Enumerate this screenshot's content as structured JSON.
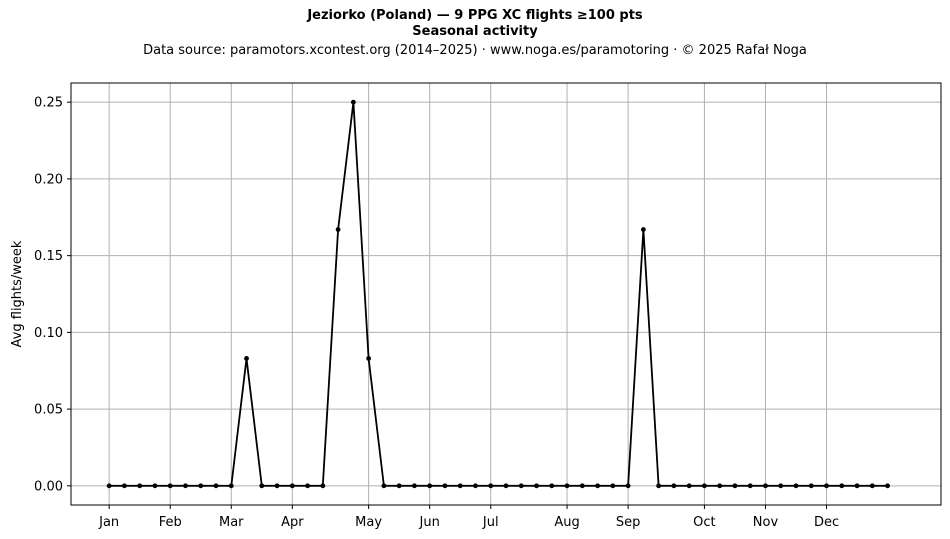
{
  "chart_data": {
    "type": "line",
    "title": "Jeziorko (Poland)  —  9 PPG XC flights ≥100 pts",
    "subtitle": "Seasonal activity",
    "source_note": "Data source: paramotors.xcontest.org (2014–2025)  ·  www.noga.es/paramotoring  ·  © 2025 Rafał Noga",
    "xlabel": "",
    "ylabel": "Avg flights/week",
    "x_axis": "week of year",
    "xlim": [
      -2.5,
      54.5
    ],
    "ylim": [
      -0.0125,
      0.2625
    ],
    "grid": true,
    "month_ticks": [
      {
        "label": "Jan",
        "x": 0
      },
      {
        "label": "Feb",
        "x": 4
      },
      {
        "label": "Mar",
        "x": 8
      },
      {
        "label": "Apr",
        "x": 12
      },
      {
        "label": "May",
        "x": 17
      },
      {
        "label": "Jun",
        "x": 21
      },
      {
        "label": "Jul",
        "x": 25
      },
      {
        "label": "Aug",
        "x": 30
      },
      {
        "label": "Sep",
        "x": 34
      },
      {
        "label": "Oct",
        "x": 39
      },
      {
        "label": "Nov",
        "x": 43
      },
      {
        "label": "Dec",
        "x": 47
      }
    ],
    "y_ticks": [
      "0.00",
      "0.05",
      "0.10",
      "0.15",
      "0.20",
      "0.25"
    ],
    "series": [
      {
        "color": "#000000",
        "x": [
          0,
          1,
          2,
          3,
          4,
          5,
          6,
          7,
          8,
          9,
          10,
          11,
          12,
          13,
          14,
          15,
          16,
          17,
          18,
          19,
          20,
          21,
          22,
          23,
          24,
          25,
          26,
          27,
          28,
          29,
          30,
          31,
          32,
          33,
          34,
          35,
          36,
          37,
          38,
          39,
          40,
          41,
          42,
          43,
          44,
          45,
          46,
          47,
          48,
          49,
          50,
          51
        ],
        "values": [
          0,
          0,
          0,
          0,
          0,
          0,
          0,
          0,
          0,
          0.083,
          0,
          0,
          0,
          0,
          0,
          0.167,
          0.25,
          0.083,
          0,
          0,
          0,
          0,
          0,
          0,
          0,
          0,
          0,
          0,
          0,
          0,
          0,
          0,
          0,
          0,
          0,
          0.167,
          0,
          0,
          0,
          0,
          0,
          0,
          0,
          0,
          0,
          0,
          0,
          0,
          0,
          0,
          0,
          0
        ]
      }
    ]
  }
}
